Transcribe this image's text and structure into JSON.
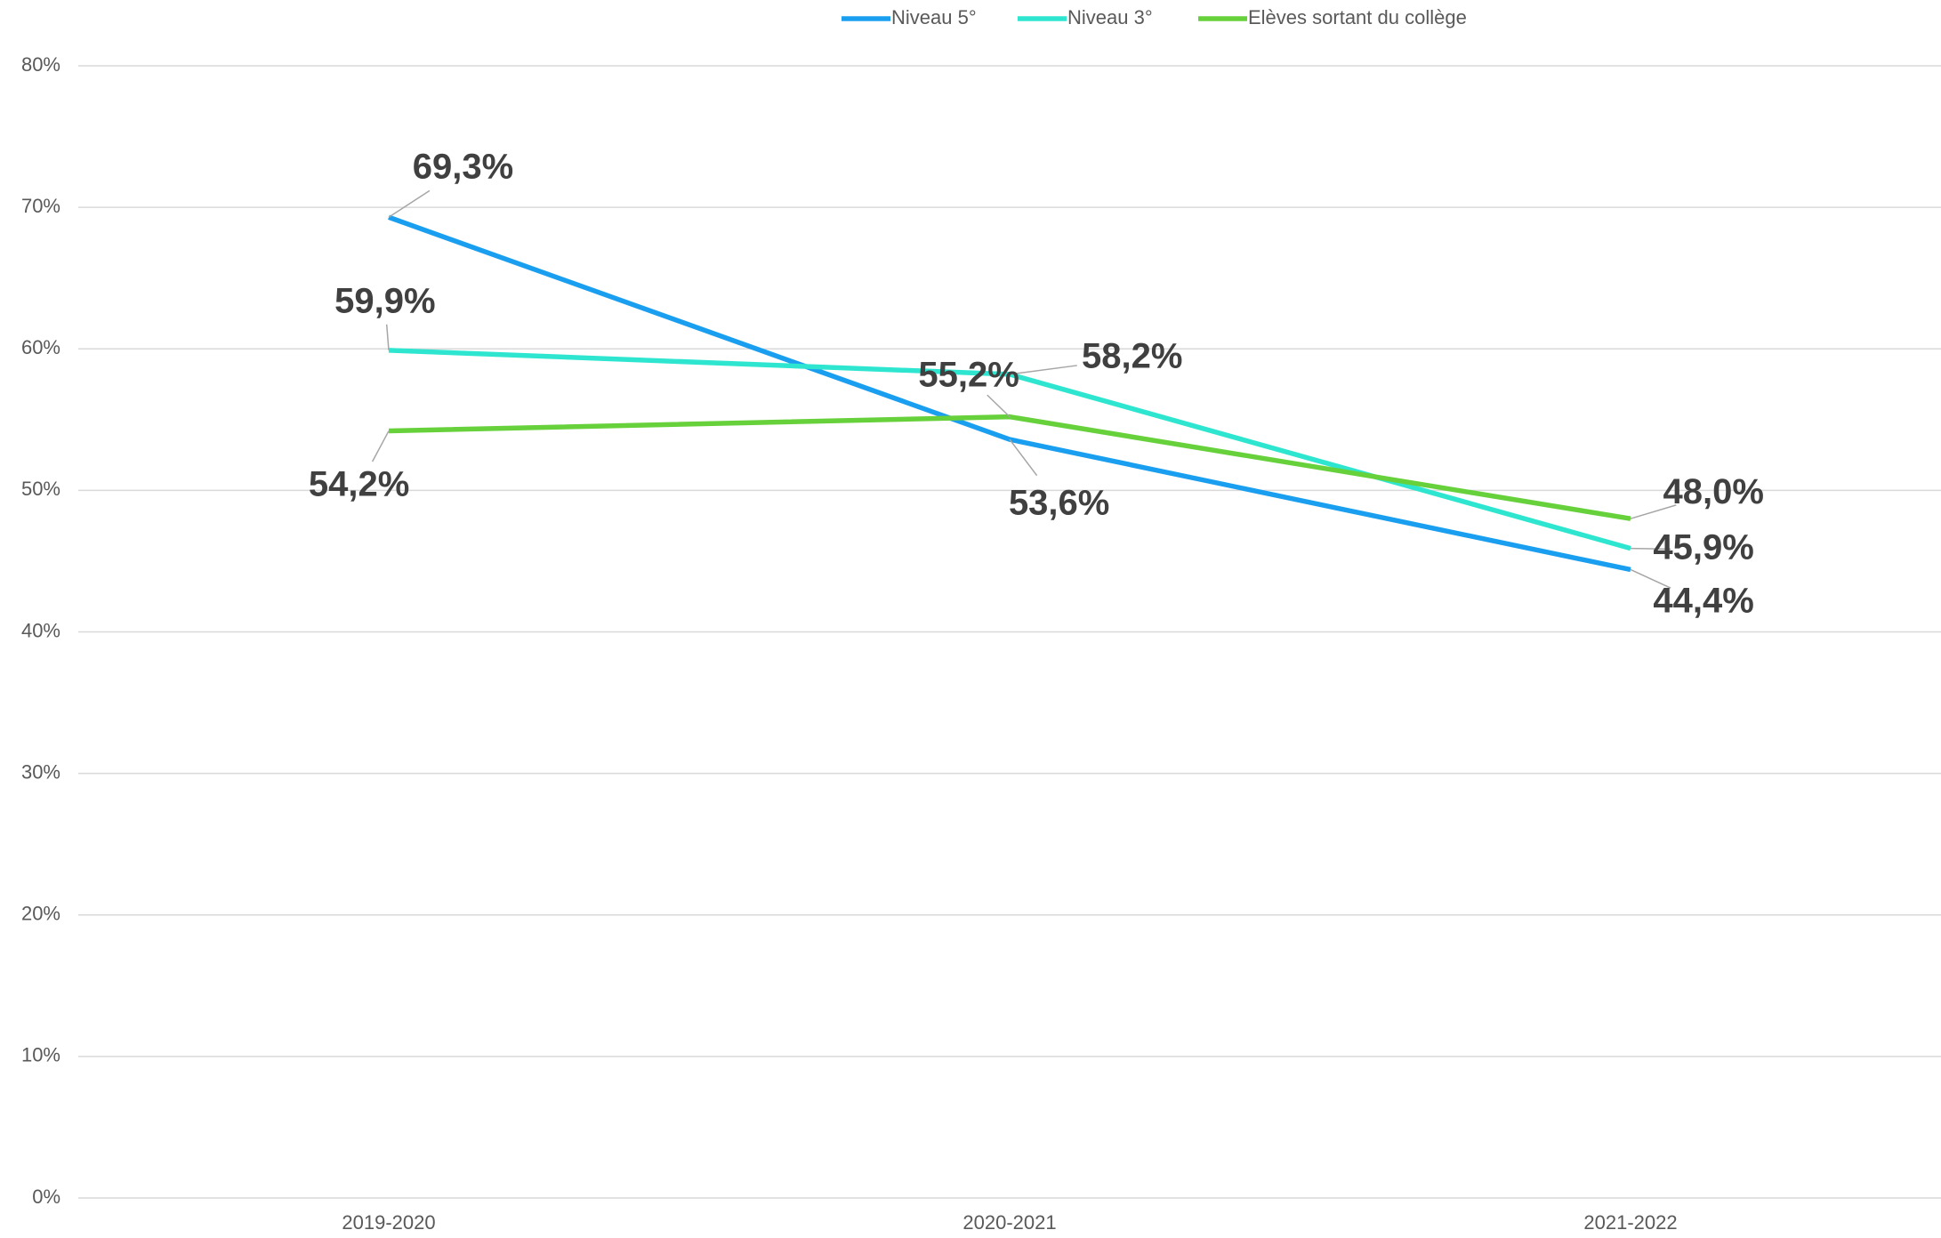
{
  "chart_data": {
    "type": "line",
    "categories": [
      "2019-2020",
      "2020-2021",
      "2021-2022"
    ],
    "series": [
      {
        "name": "Niveau 5°",
        "color": "#1a9ff0",
        "values": [
          69.3,
          53.6,
          44.4
        ],
        "value_labels": [
          "69,3%",
          "53,6%",
          "44,4%"
        ]
      },
      {
        "name": "Niveau 3°",
        "color": "#2ee6d0",
        "values": [
          59.9,
          58.2,
          45.9
        ],
        "value_labels": [
          "59,9%",
          "58,2%",
          "45,9%"
        ]
      },
      {
        "name": "Elèves sortant du collège",
        "color": "#66d13a",
        "values": [
          54.2,
          55.2,
          48.0
        ],
        "value_labels": [
          "54,2%",
          "55,2%",
          "48,0%"
        ]
      }
    ],
    "ylim": [
      0,
      80
    ],
    "yticks": [
      {
        "value": 0,
        "label": "0%"
      },
      {
        "value": 10,
        "label": "10%"
      },
      {
        "value": 20,
        "label": "20%"
      },
      {
        "value": 30,
        "label": "30%"
      },
      {
        "value": 40,
        "label": "40%"
      },
      {
        "value": 50,
        "label": "50%"
      },
      {
        "value": 60,
        "label": "60%"
      },
      {
        "value": 70,
        "label": "70%"
      },
      {
        "value": 80,
        "label": "80%"
      }
    ],
    "grid": true,
    "legend": "top"
  }
}
